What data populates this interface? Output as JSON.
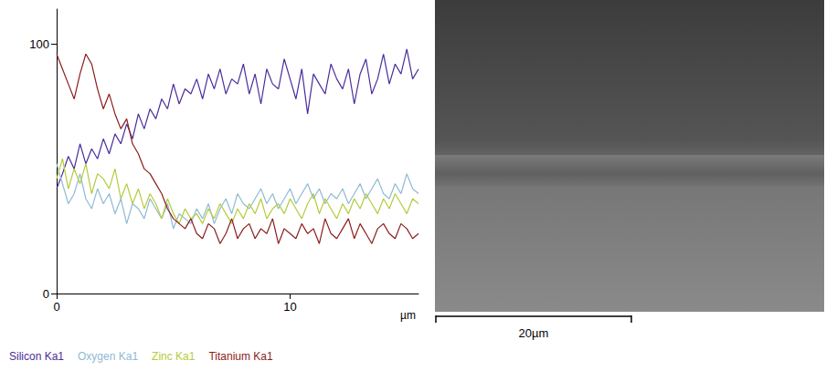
{
  "chart_data": {
    "type": "line",
    "x_label": "µm",
    "x": [
      0,
      0.25,
      0.5,
      0.75,
      1,
      1.25,
      1.5,
      1.75,
      2,
      2.25,
      2.5,
      2.75,
      3,
      3.25,
      3.5,
      3.75,
      4,
      4.25,
      4.5,
      4.75,
      5,
      5.25,
      5.5,
      5.75,
      6,
      6.25,
      6.5,
      6.75,
      7,
      7.25,
      7.5,
      7.75,
      8,
      8.25,
      8.5,
      8.75,
      9,
      9.25,
      9.5,
      9.75,
      10,
      10.25,
      10.5,
      10.75,
      11,
      11.25,
      11.5,
      11.75,
      12,
      12.25,
      12.5,
      12.75,
      13,
      13.25,
      13.5,
      13.75,
      14,
      14.25,
      14.5,
      14.75,
      15,
      15.25,
      15.5
    ],
    "series": [
      {
        "name": "Silicon Ka1",
        "color": "#4b2c9c",
        "values": [
          42,
          48,
          55,
          50,
          60,
          52,
          58,
          54,
          62,
          56,
          64,
          60,
          68,
          62,
          72,
          66,
          74,
          70,
          78,
          74,
          84,
          76,
          82,
          80,
          86,
          78,
          88,
          82,
          90,
          80,
          86,
          84,
          92,
          80,
          88,
          76,
          90,
          84,
          82,
          94,
          86,
          78,
          90,
          72,
          88,
          84,
          80,
          92,
          86,
          82,
          90,
          76,
          88,
          94,
          80,
          86,
          96,
          84,
          92,
          88,
          98,
          86,
          90
        ]
      },
      {
        "name": "Oxygen Ka1",
        "color": "#8fbad4",
        "values": [
          52,
          44,
          36,
          40,
          48,
          38,
          34,
          42,
          36,
          40,
          32,
          38,
          28,
          36,
          34,
          30,
          38,
          34,
          30,
          36,
          26,
          32,
          30,
          28,
          34,
          30,
          36,
          28,
          34,
          38,
          32,
          40,
          36,
          34,
          38,
          42,
          36,
          40,
          34,
          38,
          42,
          36,
          40,
          44,
          38,
          42,
          36,
          40,
          38,
          42,
          36,
          40,
          44,
          38,
          42,
          46,
          40,
          38,
          44,
          40,
          48,
          42,
          40
        ]
      },
      {
        "name": "Zinc Ka1",
        "color": "#b3cc3c",
        "values": [
          46,
          54,
          42,
          50,
          44,
          52,
          40,
          48,
          46,
          42,
          50,
          38,
          44,
          36,
          42,
          34,
          40,
          36,
          30,
          38,
          32,
          28,
          34,
          30,
          32,
          28,
          34,
          30,
          36,
          32,
          28,
          34,
          30,
          36,
          32,
          38,
          30,
          34,
          36,
          32,
          38,
          34,
          30,
          36,
          40,
          32,
          38,
          34,
          30,
          36,
          32,
          38,
          34,
          40,
          36,
          32,
          38,
          34,
          40,
          36,
          32,
          38,
          36
        ]
      },
      {
        "name": "Titanium Ka1",
        "color": "#8c1c1c",
        "values": [
          96,
          90,
          84,
          78,
          88,
          96,
          92,
          82,
          74,
          80,
          72,
          66,
          70,
          60,
          56,
          50,
          48,
          44,
          40,
          34,
          30,
          28,
          26,
          30,
          24,
          22,
          28,
          26,
          20,
          24,
          30,
          22,
          26,
          28,
          22,
          26,
          24,
          30,
          20,
          26,
          24,
          22,
          28,
          24,
          26,
          20,
          30,
          24,
          22,
          26,
          30,
          22,
          28,
          24,
          20,
          26,
          28,
          24,
          22,
          28,
          26,
          22,
          24
        ]
      }
    ],
    "xlim": [
      0,
      15.5
    ],
    "xticks": [
      0,
      10
    ],
    "ylim": [
      0,
      114
    ],
    "yticks": [
      0,
      100
    ],
    "grid": false,
    "legend": "bottom left"
  },
  "image": {
    "scale_bar": "20µm"
  }
}
